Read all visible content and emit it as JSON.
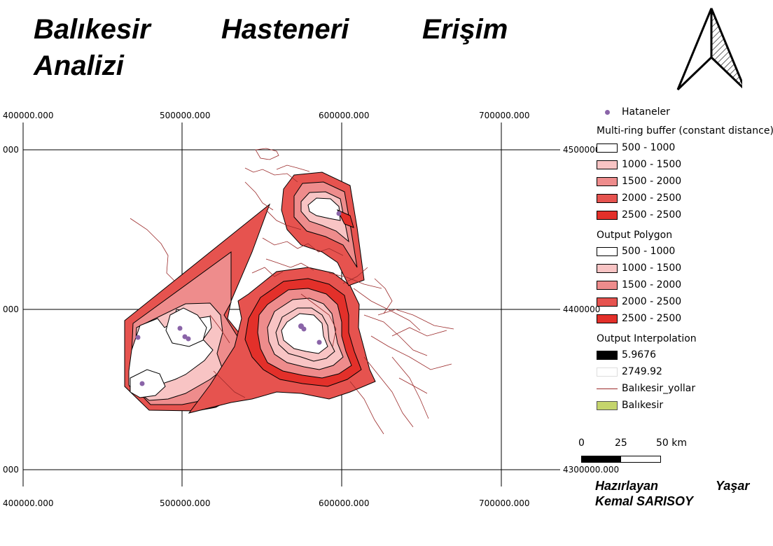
{
  "title": {
    "w1": "Balıkesir",
    "w2": "Hasteneri",
    "w3": "Erişim",
    "w4": "Analizi"
  },
  "grid": {
    "top_labels": [
      "400000.000",
      "500000.000",
      "600000.000",
      "700000.000"
    ],
    "bottom_labels": [
      "400000.000",
      "500000.000",
      "600000.000",
      "700000.000"
    ],
    "left_labels": [
      "000",
      "000",
      "000"
    ],
    "right_labels": [
      "4500000",
      "4400000",
      "4300000.000"
    ]
  },
  "legend": {
    "point_label": "Hataneler",
    "point_color": "#8a64a8",
    "group1_title": "Multi-ring buffer (constant distance)",
    "group1": [
      {
        "label": "500 - 1000",
        "color": "#ffffff"
      },
      {
        "label": "1000 - 1500",
        "color": "#f8c4c4"
      },
      {
        "label": "1500 - 2000",
        "color": "#ee8c8c"
      },
      {
        "label": "2000 - 2500",
        "color": "#e6534f"
      },
      {
        "label": "2500 - 2500",
        "color": "#e3302a"
      }
    ],
    "group2_title": "Output Polygon",
    "group2": [
      {
        "label": "500 - 1000",
        "color": "#ffffff"
      },
      {
        "label": "1000 - 1500",
        "color": "#f8c4c4"
      },
      {
        "label": "1500 - 2000",
        "color": "#ee8c8c"
      },
      {
        "label": "2000 - 2500",
        "color": "#e6534f"
      },
      {
        "label": "2500 - 2500",
        "color": "#e3302a"
      }
    ],
    "group3_title": "Output Interpolation",
    "interp_min": "5.9676",
    "interp_max": "2749.92",
    "roads_label": "Balıkesir_yollar",
    "roads_color": "#9b2a2a",
    "province_label": "Balıkesir",
    "province_color": "#c4d46c"
  },
  "scale": {
    "t0": "0",
    "t1": "25",
    "t2": "50 km"
  },
  "author": {
    "a1": "Hazırlayan",
    "a2": "Yaşar",
    "a3": "Kemal SARISOY"
  }
}
